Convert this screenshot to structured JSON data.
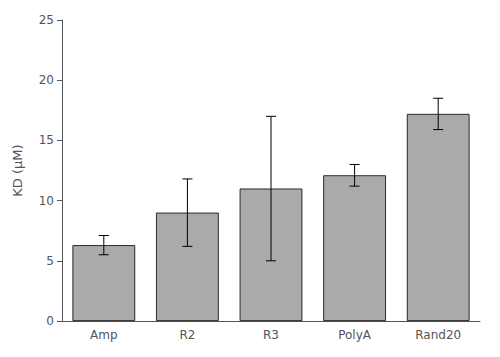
{
  "chart_data": {
    "type": "bar",
    "categories": [
      "Amp",
      "R2",
      "R3",
      "PolyA",
      "Rand20"
    ],
    "values": [
      6.3,
      9.0,
      11.0,
      12.1,
      17.2
    ],
    "errors": [
      0.8,
      2.8,
      6.0,
      0.9,
      1.3
    ],
    "color": "#AAAAAA",
    "ylabel": "KD (μM)",
    "ylim": [
      0,
      25
    ],
    "yticks": [
      0,
      5,
      10,
      15,
      20,
      25
    ],
    "grid": false
  }
}
